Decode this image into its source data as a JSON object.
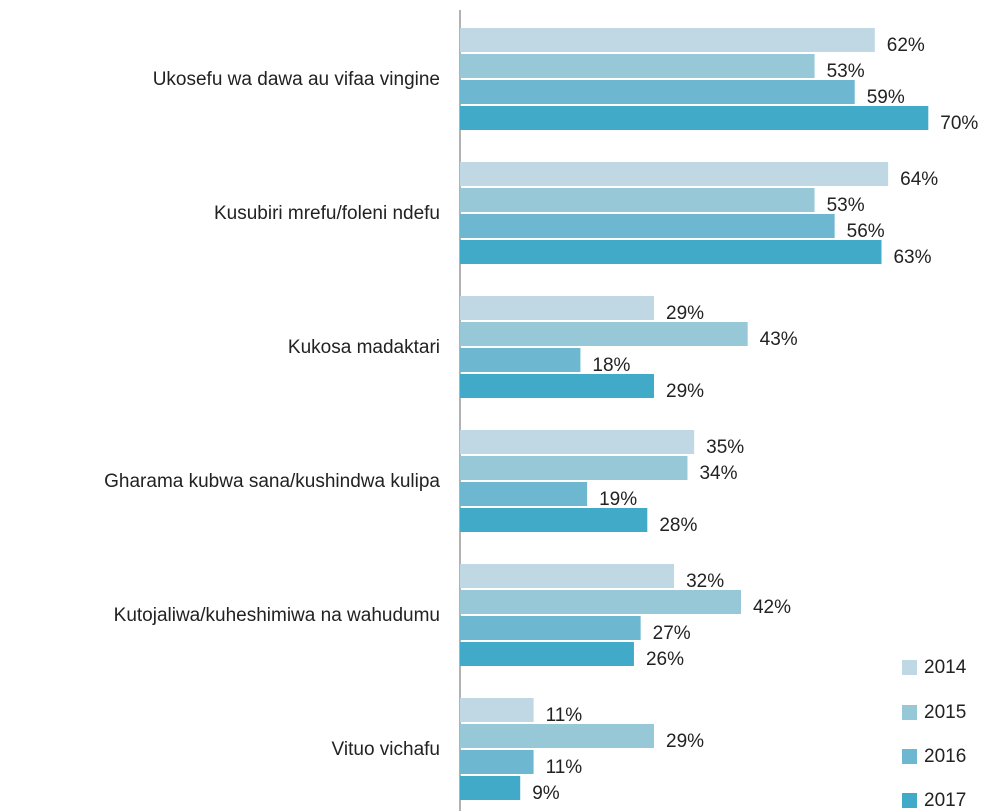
{
  "chart_data": {
    "type": "bar",
    "orientation": "horizontal",
    "categories": [
      "Ukosefu wa dawa au vifaa vingine",
      "Kusubiri mrefu/foleni ndefu",
      "Kukosa madaktari",
      "Gharama kubwa sana/kushindwa kulipa",
      "Kutojaliwa/kuheshimiwa na wahudumu",
      "Vituo vichafu"
    ],
    "series": [
      {
        "name": "2014",
        "color": "#bfd8e3",
        "values": [
          62,
          64,
          29,
          35,
          32,
          11
        ],
        "value_labels": [
          "62%",
          "64%",
          "29%",
          "35%",
          "32%",
          "11%"
        ]
      },
      {
        "name": "2015",
        "color": "#97c8d7",
        "values": [
          53,
          53,
          43,
          34,
          42,
          29
        ],
        "value_labels": [
          "53%",
          "53%",
          "43%",
          "34%",
          "42%",
          "29%"
        ]
      },
      {
        "name": "2016",
        "color": "#6db8d0",
        "values": [
          59,
          56,
          18,
          19,
          27,
          11
        ],
        "value_labels": [
          "59%",
          "56%",
          "18%",
          "19%",
          "27%",
          "11%"
        ]
      },
      {
        "name": "2017",
        "color": "#40aac8",
        "values": [
          70,
          63,
          29,
          28,
          26,
          9
        ],
        "value_labels": [
          "70%",
          "63%",
          "29%",
          "28%",
          "26%",
          "9%"
        ]
      }
    ],
    "legend": "bottom-right"
  }
}
